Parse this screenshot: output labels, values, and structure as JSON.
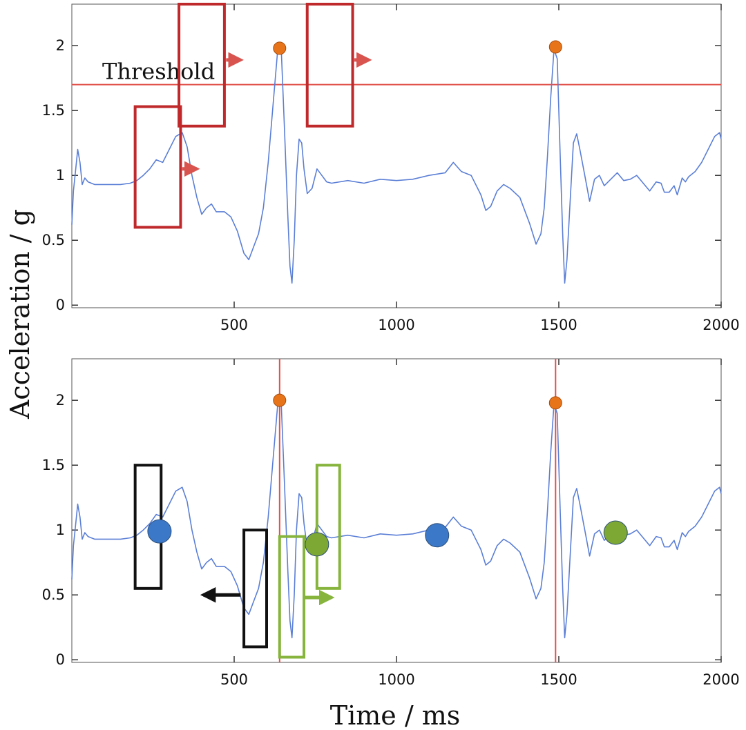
{
  "figure": {
    "ylabel": "Acceleration / g",
    "xlabel": "Time / ms"
  },
  "chart_data": [
    {
      "type": "line",
      "panel": "top",
      "xlim": [
        0,
        2000
      ],
      "ylim": [
        -0.02,
        2.32
      ],
      "xticks": [
        500,
        1000,
        1500,
        2000
      ],
      "yticks": [
        0,
        0.5,
        1,
        1.5,
        2
      ],
      "ytick_labels": [
        "0",
        "0.5",
        "1",
        "1.5",
        "2"
      ],
      "grid": false,
      "signal": [
        [
          0,
          0.62
        ],
        [
          5,
          0.88
        ],
        [
          10,
          1.0
        ],
        [
          18,
          1.2
        ],
        [
          25,
          1.1
        ],
        [
          32,
          0.93
        ],
        [
          40,
          0.98
        ],
        [
          50,
          0.95
        ],
        [
          70,
          0.93
        ],
        [
          90,
          0.93
        ],
        [
          120,
          0.93
        ],
        [
          150,
          0.93
        ],
        [
          180,
          0.94
        ],
        [
          200,
          0.96
        ],
        [
          220,
          1.0
        ],
        [
          240,
          1.05
        ],
        [
          260,
          1.12
        ],
        [
          280,
          1.1
        ],
        [
          300,
          1.2
        ],
        [
          320,
          1.3
        ],
        [
          340,
          1.33
        ],
        [
          355,
          1.22
        ],
        [
          370,
          1.0
        ],
        [
          385,
          0.83
        ],
        [
          400,
          0.7
        ],
        [
          415,
          0.75
        ],
        [
          430,
          0.78
        ],
        [
          445,
          0.72
        ],
        [
          470,
          0.72
        ],
        [
          490,
          0.68
        ],
        [
          510,
          0.57
        ],
        [
          530,
          0.4
        ],
        [
          545,
          0.35
        ],
        [
          560,
          0.45
        ],
        [
          575,
          0.55
        ],
        [
          590,
          0.75
        ],
        [
          605,
          1.1
        ],
        [
          620,
          1.55
        ],
        [
          635,
          1.99
        ],
        [
          645,
          1.97
        ],
        [
          655,
          1.35
        ],
        [
          665,
          0.7
        ],
        [
          672,
          0.3
        ],
        [
          678,
          0.17
        ],
        [
          685,
          0.5
        ],
        [
          692,
          1.0
        ],
        [
          700,
          1.28
        ],
        [
          708,
          1.25
        ],
        [
          715,
          1.05
        ],
        [
          725,
          0.86
        ],
        [
          740,
          0.9
        ],
        [
          755,
          1.05
        ],
        [
          770,
          1.0
        ],
        [
          785,
          0.95
        ],
        [
          800,
          0.94
        ],
        [
          850,
          0.96
        ],
        [
          900,
          0.94
        ],
        [
          950,
          0.97
        ],
        [
          1000,
          0.96
        ],
        [
          1050,
          0.97
        ],
        [
          1100,
          1.0
        ],
        [
          1150,
          1.02
        ],
        [
          1175,
          1.1
        ],
        [
          1200,
          1.03
        ],
        [
          1230,
          1.0
        ],
        [
          1260,
          0.85
        ],
        [
          1275,
          0.73
        ],
        [
          1290,
          0.76
        ],
        [
          1310,
          0.88
        ],
        [
          1330,
          0.93
        ],
        [
          1350,
          0.9
        ],
        [
          1380,
          0.83
        ],
        [
          1410,
          0.63
        ],
        [
          1430,
          0.47
        ],
        [
          1445,
          0.55
        ],
        [
          1455,
          0.75
        ],
        [
          1465,
          1.15
        ],
        [
          1475,
          1.6
        ],
        [
          1485,
          1.97
        ],
        [
          1495,
          1.9
        ],
        [
          1505,
          1.1
        ],
        [
          1512,
          0.55
        ],
        [
          1518,
          0.17
        ],
        [
          1525,
          0.35
        ],
        [
          1535,
          0.8
        ],
        [
          1545,
          1.25
        ],
        [
          1555,
          1.32
        ],
        [
          1565,
          1.2
        ],
        [
          1580,
          1.0
        ],
        [
          1595,
          0.8
        ],
        [
          1610,
          0.97
        ],
        [
          1625,
          1.0
        ],
        [
          1640,
          0.92
        ],
        [
          1660,
          0.97
        ],
        [
          1680,
          1.02
        ],
        [
          1700,
          0.96
        ],
        [
          1720,
          0.97
        ],
        [
          1740,
          1.0
        ],
        [
          1760,
          0.94
        ],
        [
          1780,
          0.88
        ],
        [
          1800,
          0.95
        ],
        [
          1815,
          0.94
        ],
        [
          1825,
          0.87
        ],
        [
          1840,
          0.87
        ],
        [
          1855,
          0.92
        ],
        [
          1865,
          0.85
        ],
        [
          1880,
          0.98
        ],
        [
          1890,
          0.95
        ],
        [
          1900,
          0.99
        ],
        [
          1920,
          1.03
        ],
        [
          1940,
          1.1
        ],
        [
          1960,
          1.2
        ],
        [
          1980,
          1.3
        ],
        [
          1995,
          1.33
        ],
        [
          2000,
          1.28
        ]
      ],
      "signal_color": "#5b7fd6",
      "threshold": 1.7,
      "threshold_label": "Threshold",
      "threshold_color": "#e0504a",
      "peaks": [
        [
          640,
          1.98
        ],
        [
          1490,
          1.99
        ]
      ],
      "peak_color": "#e8741a",
      "windows": [
        {
          "x0": 195,
          "x1": 335,
          "y0": 0.6,
          "y1": 1.53,
          "color": "#c0292b"
        },
        {
          "x0": 330,
          "x1": 470,
          "y0": 1.38,
          "y1": 2.32,
          "color": "#c0292b"
        },
        {
          "x0": 725,
          "x1": 865,
          "y0": 1.38,
          "y1": 2.32,
          "color": "#c0292b"
        }
      ],
      "arrows": [
        {
          "x0": 340,
          "x1": 385,
          "y": 1.05,
          "color": "#d9534f"
        },
        {
          "x0": 475,
          "x1": 520,
          "y": 1.89,
          "color": "#d9534f"
        },
        {
          "x0": 870,
          "x1": 915,
          "y": 1.89,
          "color": "#d9534f"
        }
      ]
    },
    {
      "type": "line",
      "panel": "bottom",
      "xlim": [
        0,
        2000
      ],
      "ylim": [
        -0.02,
        2.32
      ],
      "xticks": [
        500,
        1000,
        1500,
        2000
      ],
      "yticks": [
        0,
        0.5,
        1,
        1.5,
        2
      ],
      "ytick_labels": [
        "0",
        "0.5",
        "1",
        "1.5",
        "2"
      ],
      "grid": false,
      "signal_color": "#5b7fd6",
      "signal_same_as_top": true,
      "peaks": [
        [
          640,
          2.0
        ],
        [
          1490,
          1.98
        ]
      ],
      "peak_color": "#e8741a",
      "peak_lines": [
        640,
        1490
      ],
      "peak_line_color": "#e0504a",
      "markers": [
        {
          "x": 270,
          "y": 0.99,
          "color": "#3c78c8"
        },
        {
          "x": 755,
          "y": 0.89,
          "color": "#7ea834"
        },
        {
          "x": 1125,
          "y": 0.96,
          "color": "#3c78c8"
        },
        {
          "x": 1675,
          "y": 0.98,
          "color": "#7ea834"
        }
      ],
      "windows": [
        {
          "x0": 195,
          "x1": 275,
          "y0": 0.55,
          "y1": 1.5,
          "color": "#111111"
        },
        {
          "x0": 530,
          "x1": 600,
          "y0": 0.1,
          "y1": 1.0,
          "color": "#111111"
        },
        {
          "x0": 640,
          "x1": 715,
          "y0": 0.02,
          "y1": 0.95,
          "color": "#86b43c"
        },
        {
          "x0": 755,
          "x1": 825,
          "y0": 0.55,
          "y1": 1.5,
          "color": "#86b43c"
        }
      ],
      "arrows": [
        {
          "x0": 520,
          "x1": 405,
          "y": 0.5,
          "color": "#111111"
        },
        {
          "x0": 715,
          "x1": 800,
          "y": 0.48,
          "color": "#86b43c"
        }
      ]
    }
  ]
}
